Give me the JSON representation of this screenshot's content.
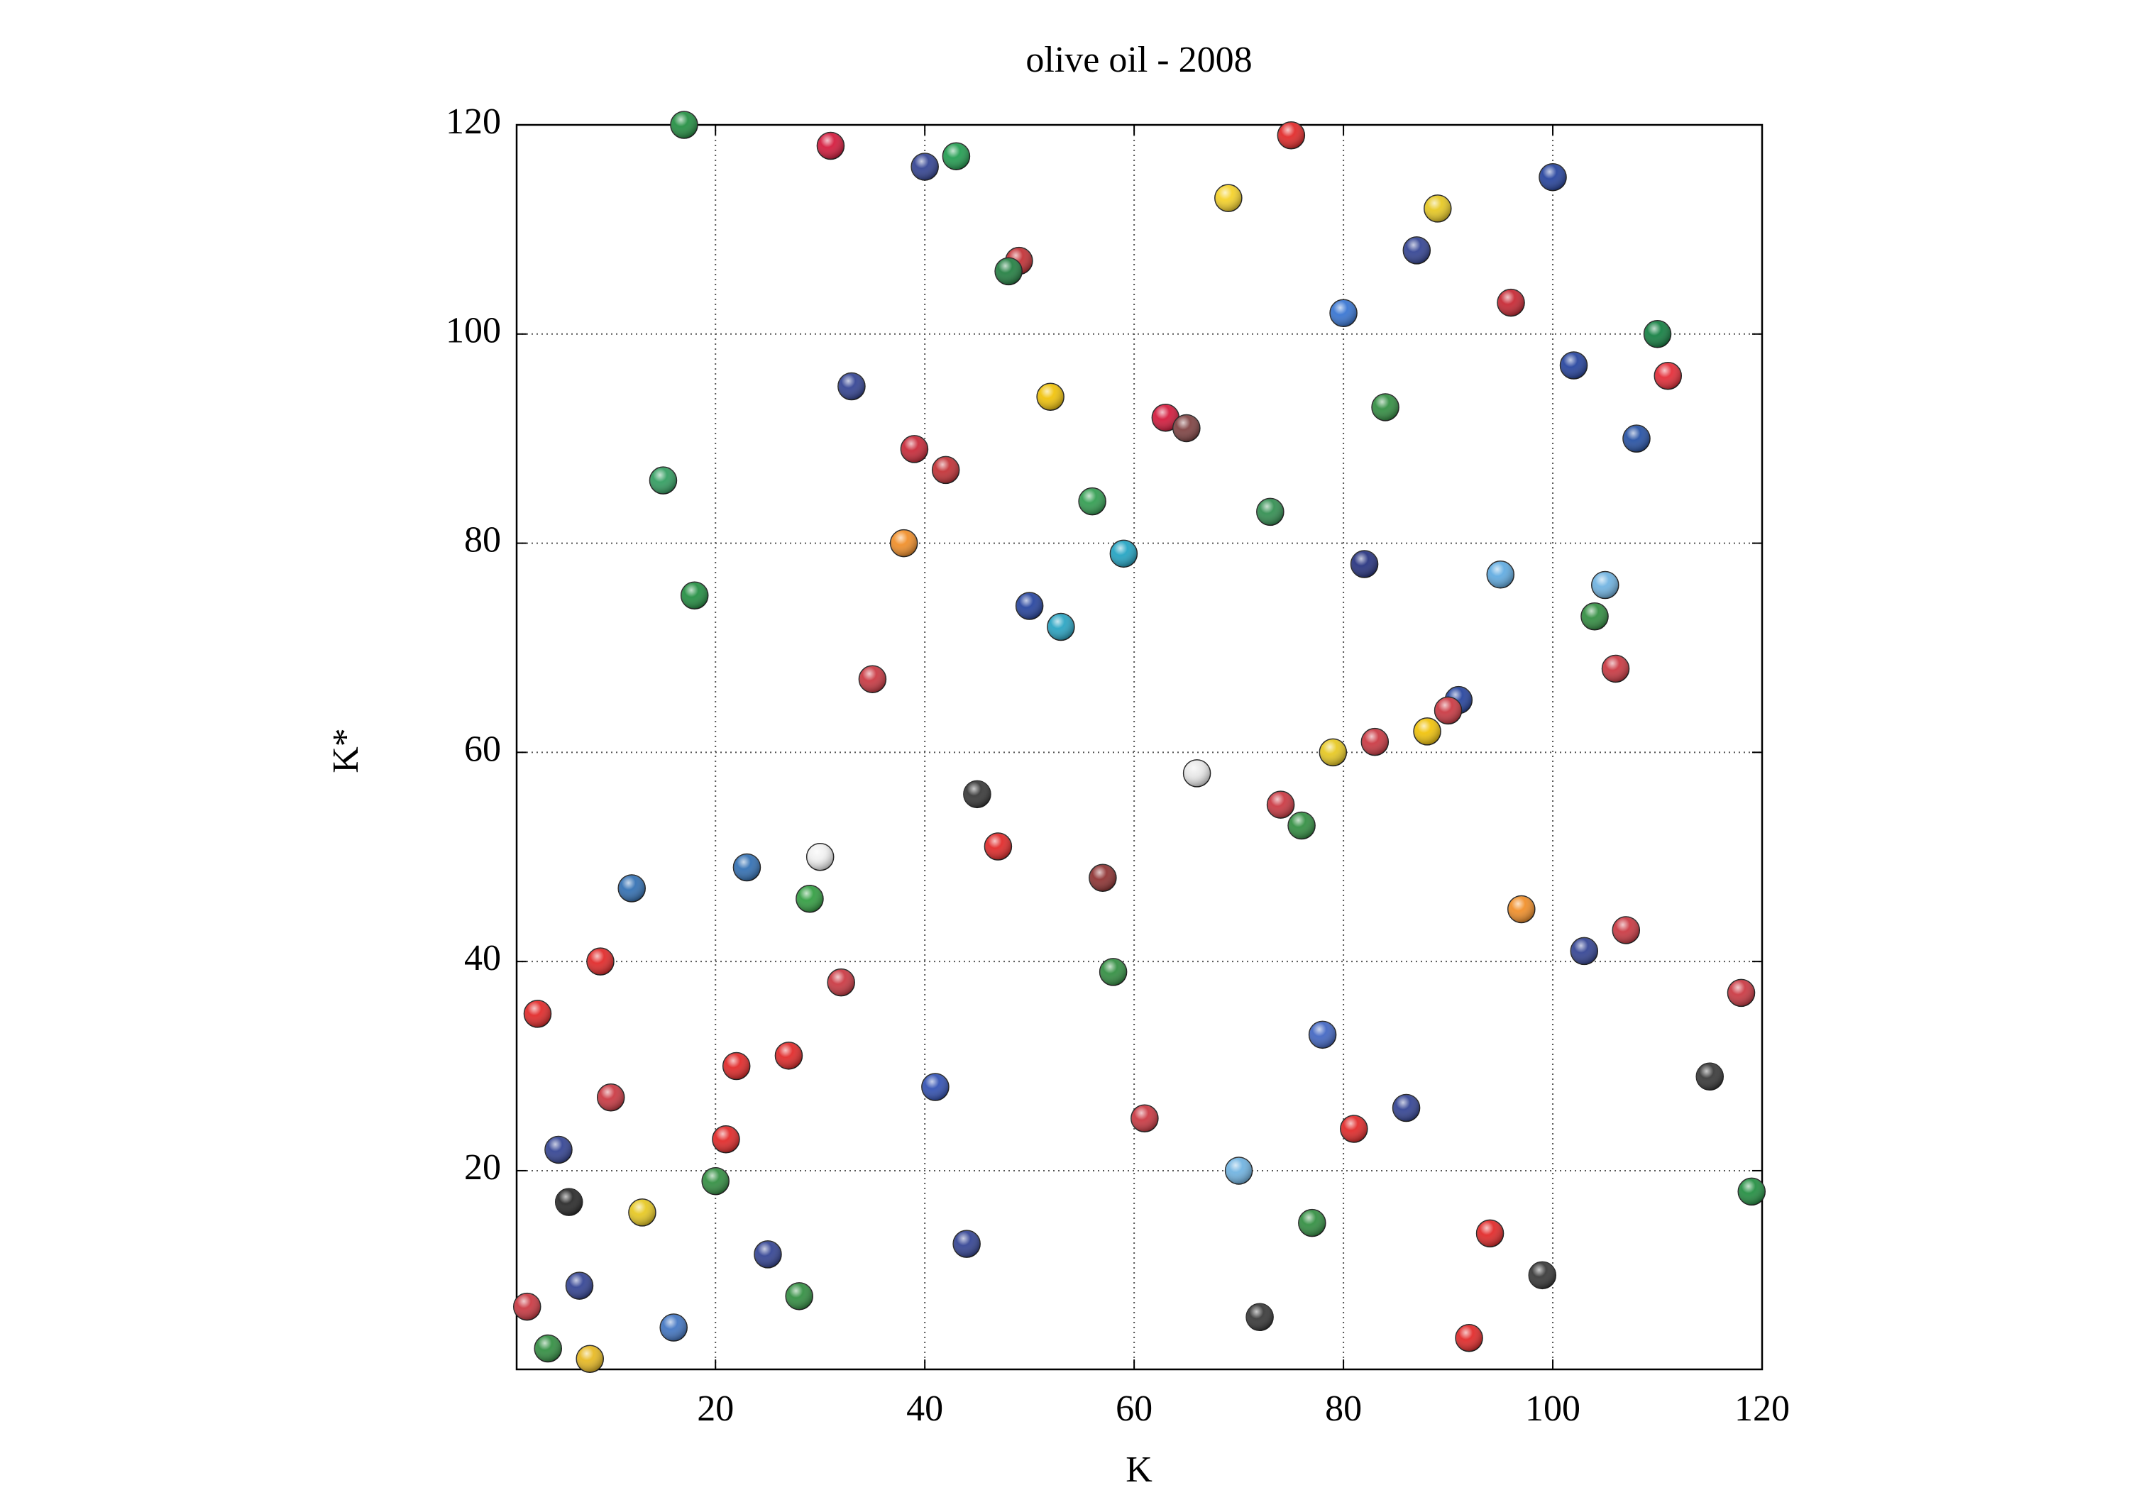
{
  "chart_data": {
    "type": "scatter",
    "title": "olive oil - 2008",
    "x_label": "K",
    "y_label": "K*",
    "xlim": [
      1,
      120
    ],
    "ylim": [
      1,
      120
    ],
    "xticks": [
      20,
      40,
      60,
      80,
      100,
      120
    ],
    "yticks": [
      20,
      40,
      60,
      80,
      100,
      120
    ],
    "grid": true,
    "series": [
      {
        "x": [
          17,
          31,
          40,
          43,
          75,
          69,
          100,
          89,
          87,
          49,
          48,
          96,
          80,
          110,
          102,
          111,
          33,
          52,
          63,
          65,
          84,
          39,
          108,
          15,
          42,
          56,
          73,
          38,
          59,
          82,
          95,
          18,
          105,
          50,
          53,
          104,
          35,
          106,
          91,
          90,
          88,
          83,
          79,
          66,
          45,
          74,
          76,
          30,
          47,
          23,
          57,
          12,
          29,
          97,
          107,
          9,
          103,
          58,
          32,
          118,
          3,
          78,
          27,
          22,
          115,
          41,
          10,
          86,
          61,
          81,
          21,
          5,
          70,
          20,
          119,
          6,
          13,
          77,
          94,
          44,
          25,
          99,
          7,
          28,
          2,
          72,
          16,
          92,
          4,
          8
        ],
        "values": [
          120,
          118,
          116,
          117,
          119,
          113,
          115,
          112,
          108,
          107,
          106,
          103,
          102,
          100,
          97,
          96,
          95,
          94,
          92,
          91,
          93,
          89,
          90,
          86,
          87,
          84,
          83,
          80,
          79,
          78,
          77,
          75,
          76,
          74,
          72,
          73,
          67,
          68,
          65,
          64,
          62,
          61,
          60,
          58,
          56,
          55,
          53,
          50,
          51,
          49,
          48,
          47,
          46,
          45,
          43,
          40,
          41,
          39,
          38,
          37,
          35,
          33,
          31,
          30,
          29,
          28,
          27,
          26,
          25,
          24,
          23,
          22,
          20,
          19,
          18,
          17,
          16,
          15,
          14,
          13,
          12,
          10,
          9,
          8,
          7,
          6,
          5,
          4,
          3,
          2
        ],
        "colors": [
          "#1a8a3a",
          "#d21034",
          "#2b3c8f",
          "#1a9a4a",
          "#e02020",
          "#f5d020",
          "#1d3c9a",
          "#e6c619",
          "#2b3c8f",
          "#c0282d",
          "#1a7a3a",
          "#c41e2a",
          "#2f6fd0",
          "#0a7a3a",
          "#1d3c9a",
          "#e3232f",
          "#2b3c8f",
          "#f0c000",
          "#d21034",
          "#7a3b3b",
          "#2a8a3a",
          "#c62030",
          "#1d4aa0",
          "#2a9a5a",
          "#c0282d",
          "#2a9a4a",
          "#2a8a4a",
          "#f08a20",
          "#1aa0c0",
          "#1d2a7a",
          "#5aa8e0",
          "#1a8a3a",
          "#6ab0e0",
          "#1d3c9a",
          "#20a0c0",
          "#2a8a3a",
          "#c8303a",
          "#c8303a",
          "#1d3c9a",
          "#c8303a",
          "#f0c000",
          "#c8303a",
          "#e6c619",
          "#e8e8e8",
          "#303030",
          "#c8303a",
          "#2a8a3a",
          "#f0f0f0",
          "#e02020",
          "#2a6ab0",
          "#8a2a2a",
          "#2a6ab0",
          "#2a9a3a",
          "#f08a20",
          "#c8303a",
          "#e02020",
          "#2b3c8f",
          "#2a8a3a",
          "#c8303a",
          "#c8303a",
          "#e02020",
          "#3a60c0",
          "#e02020",
          "#e02020",
          "#303030",
          "#2a4ab0",
          "#c8303a",
          "#2b3c8f",
          "#c8303a",
          "#e02020",
          "#e02020",
          "#2b3c8f",
          "#6ab0e0",
          "#2a8a3a",
          "#1a8a3a",
          "#202020",
          "#e6c619",
          "#2a8a3a",
          "#e02020",
          "#2b3c8f",
          "#2b3c8f",
          "#303030",
          "#2b3c8f",
          "#2a8a3a",
          "#c8303a",
          "#303030",
          "#3a70c0",
          "#e02020",
          "#2a8a3a",
          "#e6b619"
        ]
      }
    ]
  }
}
